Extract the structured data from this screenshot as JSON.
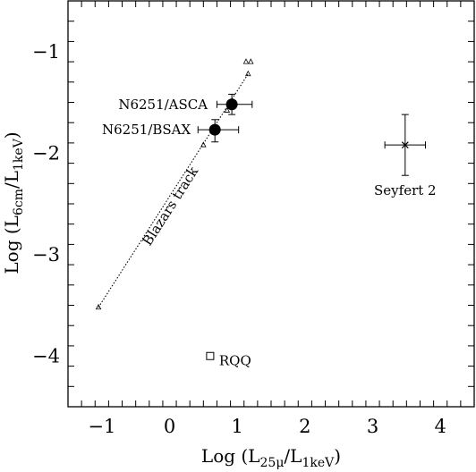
{
  "chart_data": {
    "type": "scatter",
    "title": "",
    "xlabel": {
      "main": "Log (L",
      "sub1": "25μ",
      "mid": "/L",
      "sub2": "1keV",
      "end": ")"
    },
    "ylabel": {
      "main": "Log (L",
      "sub1": "6cm",
      "mid": "/L",
      "sub2": "1keV",
      "end": ")"
    },
    "xlim": [
      -1.5,
      4.5
    ],
    "ylim": [
      -4.5,
      -0.5
    ],
    "x_ticks": [
      -1,
      0,
      1,
      2,
      3,
      4
    ],
    "y_ticks": [
      -1,
      -2,
      -3,
      -4
    ],
    "x_tick_labels": [
      "−1",
      "0",
      "1",
      "2",
      "3",
      "4"
    ],
    "y_tick_labels": [
      "−1",
      "−2",
      "−3",
      "−4"
    ],
    "grid": false,
    "points": [
      {
        "label": "N6251/ASCA",
        "x": 0.92,
        "y": -1.52,
        "xerr": [
          0.22,
          0.3
        ],
        "yerr": [
          0.1,
          0.1
        ],
        "marker": "filled-circle"
      },
      {
        "label": "N6251/BSAX",
        "x": 0.67,
        "y": -1.77,
        "xerr": [
          0.25,
          0.35
        ],
        "yerr": [
          0.12,
          0.1
        ],
        "marker": "filled-circle"
      },
      {
        "label": "Seyfert 2",
        "x": 3.48,
        "y": -1.92,
        "xerr": [
          0.3,
          0.3
        ],
        "yerr": [
          0.3,
          0.3
        ],
        "marker": "cross"
      },
      {
        "label": "RQQ",
        "x": 0.6,
        "y": -4.0,
        "marker": "open-square"
      }
    ],
    "track": {
      "label": "Blazars track",
      "points": [
        {
          "x": -1.05,
          "y": -3.52
        },
        {
          "x": 0.5,
          "y": -1.92
        },
        {
          "x": 0.85,
          "y": -1.58
        },
        {
          "x": 1.16,
          "y": -1.22
        },
        {
          "x": 1.13,
          "y": -1.1
        },
        {
          "x": 1.2,
          "y": -1.1
        }
      ]
    }
  }
}
